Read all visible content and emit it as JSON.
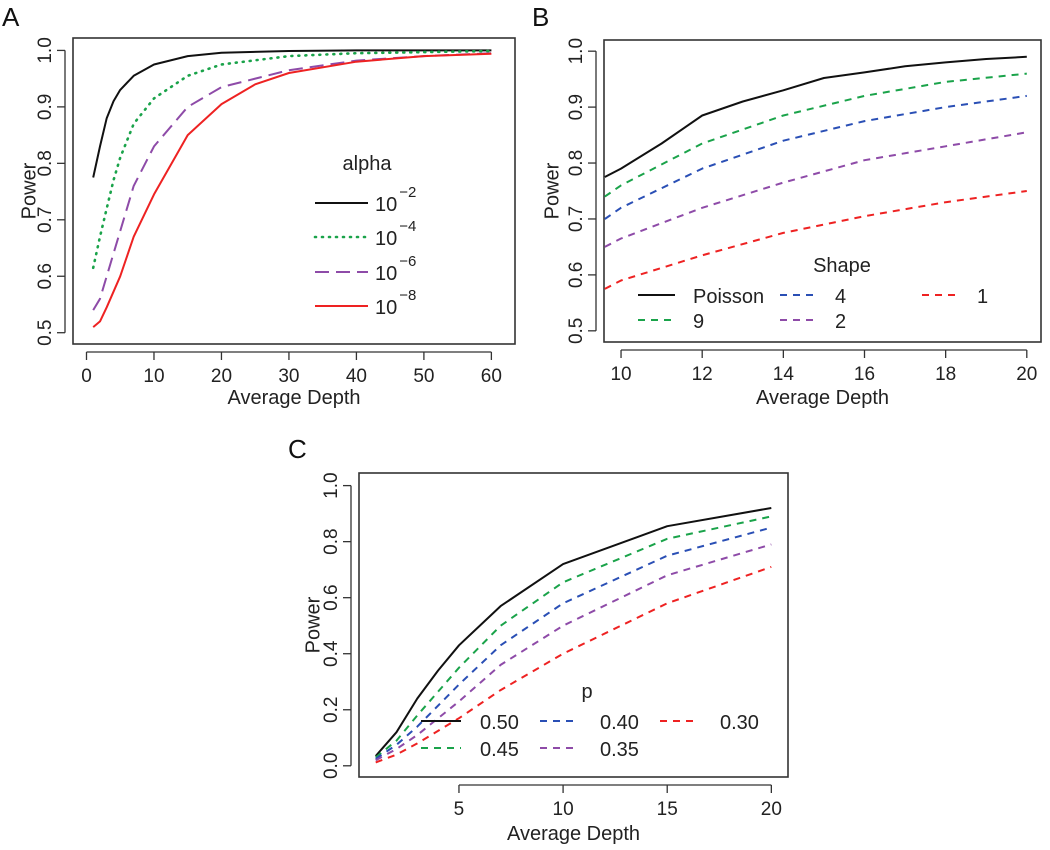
{
  "chart_data": [
    {
      "panel": "A",
      "type": "line",
      "xlabel": "Average Depth",
      "ylabel": "Power",
      "xlim": [
        -2,
        63.5
      ],
      "ylim": [
        0.48,
        1.022
      ],
      "xticks": [
        0,
        10,
        20,
        30,
        40,
        50,
        60
      ],
      "yticks": [
        0.5,
        0.6,
        0.7,
        0.8,
        0.9,
        1.0
      ],
      "ytick_labels": [
        "0.5",
        "0.6",
        "0.7",
        "0.8",
        "0.9",
        "1.0"
      ],
      "legend": {
        "title": "alpha",
        "placement": "center-right"
      },
      "series": [
        {
          "name": "10^-2",
          "base": "10",
          "exp": "−2",
          "color": "#111111",
          "style": "solid",
          "x": [
            1,
            2,
            3,
            4,
            5,
            7,
            10,
            15,
            20,
            30,
            40,
            60
          ],
          "y": [
            0.775,
            0.83,
            0.88,
            0.91,
            0.93,
            0.955,
            0.975,
            0.99,
            0.996,
            0.999,
            1.0,
            1.0
          ]
        },
        {
          "name": "10^-4",
          "base": "10",
          "exp": "−4",
          "color": "#1aa34a",
          "style": "dotted",
          "x": [
            1,
            2,
            3,
            4,
            5,
            7,
            10,
            15,
            20,
            30,
            40,
            60
          ],
          "y": [
            0.615,
            0.67,
            0.72,
            0.77,
            0.81,
            0.87,
            0.915,
            0.955,
            0.975,
            0.99,
            0.995,
            0.999
          ]
        },
        {
          "name": "10^-6",
          "base": "10",
          "exp": "−6",
          "color": "#8e4ba8",
          "style": "longdash",
          "x": [
            1,
            2,
            3,
            5,
            7,
            10,
            15,
            20,
            30,
            40,
            50,
            60
          ],
          "y": [
            0.54,
            0.56,
            0.6,
            0.68,
            0.76,
            0.83,
            0.9,
            0.935,
            0.965,
            0.982,
            0.99,
            0.995
          ]
        },
        {
          "name": "10^-8",
          "base": "10",
          "exp": "−8",
          "color": "#ee2222",
          "style": "solid",
          "x": [
            1,
            2,
            3,
            5,
            7,
            10,
            15,
            20,
            25,
            30,
            40,
            50,
            60
          ],
          "y": [
            0.51,
            0.52,
            0.545,
            0.6,
            0.67,
            0.745,
            0.85,
            0.905,
            0.94,
            0.96,
            0.98,
            0.99,
            0.994
          ]
        }
      ]
    },
    {
      "panel": "B",
      "type": "line",
      "xlabel": "Average Depth",
      "ylabel": "Power",
      "xlim": [
        9.58,
        20.35
      ],
      "ylim": [
        0.48,
        1.02
      ],
      "xticks": [
        10,
        12,
        14,
        16,
        18,
        20
      ],
      "yticks": [
        0.5,
        0.6,
        0.7,
        0.8,
        0.9,
        1.0
      ],
      "ytick_labels": [
        "0.5",
        "0.6",
        "0.7",
        "0.8",
        "0.9",
        "1.0"
      ],
      "legend": {
        "title": "Shape",
        "placement": "bottom"
      },
      "series": [
        {
          "name": "Poisson",
          "color": "#111111",
          "style": "solid",
          "x": [
            9.6,
            10,
            11,
            12,
            13,
            14,
            15,
            16,
            17,
            18,
            19,
            20
          ],
          "y": [
            0.775,
            0.79,
            0.835,
            0.885,
            0.91,
            0.93,
            0.952,
            0.962,
            0.973,
            0.98,
            0.986,
            0.99
          ]
        },
        {
          "name": "9",
          "color": "#1aa34a",
          "style": "dashed",
          "x": [
            9.6,
            10,
            12,
            14,
            16,
            18,
            20
          ],
          "y": [
            0.74,
            0.76,
            0.835,
            0.885,
            0.92,
            0.945,
            0.96
          ]
        },
        {
          "name": "4",
          "color": "#2a4fb5",
          "style": "dashed",
          "x": [
            9.6,
            10,
            12,
            14,
            16,
            18,
            20
          ],
          "y": [
            0.7,
            0.72,
            0.79,
            0.84,
            0.875,
            0.9,
            0.92
          ]
        },
        {
          "name": "2",
          "color": "#8e4ba8",
          "style": "dashed",
          "x": [
            9.6,
            10,
            12,
            14,
            16,
            18,
            20
          ],
          "y": [
            0.65,
            0.665,
            0.72,
            0.765,
            0.805,
            0.83,
            0.855
          ]
        },
        {
          "name": "1",
          "color": "#ee2222",
          "style": "dashed",
          "x": [
            9.6,
            10,
            12,
            14,
            16,
            18,
            20
          ],
          "y": [
            0.575,
            0.59,
            0.635,
            0.675,
            0.705,
            0.73,
            0.75
          ]
        }
      ]
    },
    {
      "panel": "C",
      "type": "line",
      "xlabel": "Average Depth",
      "ylabel": "Power",
      "xlim": [
        0.2,
        20.8
      ],
      "ylim": [
        -0.04,
        1.045
      ],
      "xticks": [
        5,
        10,
        15,
        20
      ],
      "yticks": [
        0.0,
        0.2,
        0.4,
        0.6,
        0.8,
        1.0
      ],
      "ytick_labels": [
        "0.0",
        "0.2",
        "0.4",
        "0.6",
        "0.8",
        "1.0"
      ],
      "legend": {
        "title": "p",
        "placement": "bottom"
      },
      "series": [
        {
          "name": "0.50",
          "color": "#111111",
          "style": "solid",
          "x": [
            1,
            2,
            3,
            4,
            5,
            7,
            10,
            15,
            20
          ],
          "y": [
            0.035,
            0.12,
            0.24,
            0.34,
            0.43,
            0.57,
            0.72,
            0.855,
            0.92
          ]
        },
        {
          "name": "0.45",
          "color": "#1aa34a",
          "style": "dashed",
          "x": [
            1,
            2,
            3,
            5,
            7,
            10,
            15,
            20
          ],
          "y": [
            0.03,
            0.09,
            0.18,
            0.35,
            0.5,
            0.655,
            0.81,
            0.89
          ]
        },
        {
          "name": "0.40",
          "color": "#2a4fb5",
          "style": "dashed",
          "x": [
            1,
            2,
            3,
            5,
            7,
            10,
            15,
            20
          ],
          "y": [
            0.025,
            0.075,
            0.14,
            0.29,
            0.43,
            0.58,
            0.75,
            0.85
          ]
        },
        {
          "name": "0.35",
          "color": "#8e4ba8",
          "style": "dashed",
          "x": [
            1,
            2,
            3,
            5,
            7,
            10,
            15,
            20
          ],
          "y": [
            0.02,
            0.06,
            0.11,
            0.23,
            0.36,
            0.5,
            0.68,
            0.79
          ]
        },
        {
          "name": "0.30",
          "color": "#ee2222",
          "style": "dashed",
          "x": [
            1,
            2,
            3,
            5,
            7,
            10,
            15,
            20
          ],
          "y": [
            0.012,
            0.04,
            0.08,
            0.17,
            0.27,
            0.4,
            0.58,
            0.71
          ]
        }
      ]
    }
  ]
}
